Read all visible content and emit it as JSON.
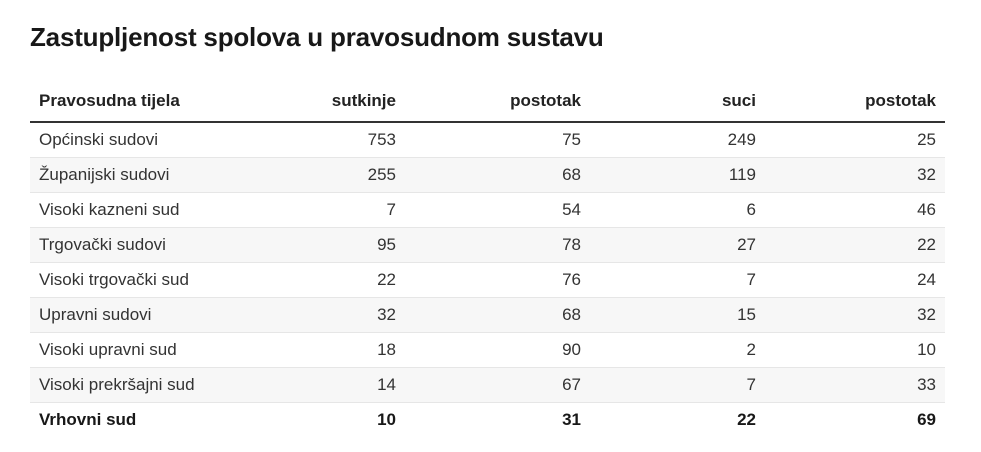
{
  "chart_data": {
    "type": "table",
    "title": "Zastupljenost spolova u pravosudnom sustavu",
    "columns": [
      "Pravosudna tijela",
      "sutkinje",
      "postotak",
      "suci",
      "postotak"
    ],
    "rows": [
      [
        "Općinski sudovi",
        "753",
        "75",
        "249",
        "25"
      ],
      [
        "Županijski sudovi",
        "255",
        "68",
        "119",
        "32"
      ],
      [
        "Visoki kazneni sud",
        "7",
        "54",
        "6",
        "46"
      ],
      [
        "Trgovački sudovi",
        "95",
        "78",
        "27",
        "22"
      ],
      [
        "Visoki trgovački sud",
        "22",
        "76",
        "7",
        "24"
      ],
      [
        "Upravni sudovi",
        "32",
        "68",
        "15",
        "32"
      ],
      [
        "Visoki upravni sud",
        "18",
        "90",
        "2",
        "10"
      ],
      [
        "Visoki prekršajni sud",
        "14",
        "67",
        "7",
        "33"
      ],
      [
        "Vrhovni sud",
        "10",
        "31",
        "22",
        "69"
      ]
    ],
    "bold_rows": [
      "Vrhovni sud"
    ]
  }
}
